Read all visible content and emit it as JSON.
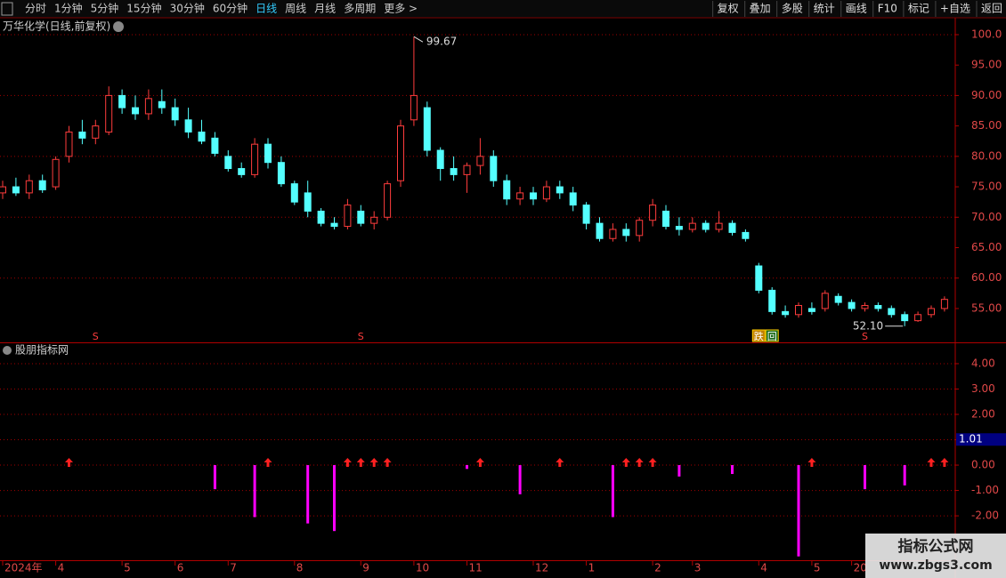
{
  "toolbar": {
    "left": [
      "分时",
      "1分钟",
      "5分钟",
      "15分钟",
      "30分钟",
      "60分钟",
      "日线",
      "周线",
      "月线",
      "多周期",
      "更多 >"
    ],
    "active": 6,
    "right": [
      "复权",
      "叠加",
      "多股",
      "统计",
      "画线",
      "F10",
      "标记",
      "+自选",
      "返回"
    ]
  },
  "watermark": {
    "title": "指标公式网",
    "url": "www.zbgs3.com"
  },
  "chart_data": [
    {
      "type": "candlestick",
      "title": "万华化学(日线,前复权)",
      "up_color": "#ff3c3c",
      "down_color": "#54ffff",
      "categories": [
        "2024年",
        null,
        null,
        null,
        "4",
        null,
        null,
        null,
        null,
        "5",
        null,
        null,
        null,
        "6",
        null,
        null,
        null,
        "7",
        null,
        null,
        null,
        null,
        "8",
        null,
        null,
        null,
        null,
        "9",
        null,
        null,
        null,
        "10",
        null,
        null,
        null,
        "11",
        null,
        null,
        null,
        null,
        "12",
        null,
        null,
        null,
        "1",
        null,
        null,
        null,
        null,
        "2",
        null,
        null,
        "3",
        null,
        null,
        null,
        null,
        "4",
        null,
        null,
        null,
        "5",
        null,
        null,
        "20",
        null,
        null,
        null,
        null,
        null,
        null,
        null
      ],
      "candles": [
        [
          74,
          76,
          73,
          75
        ],
        [
          75,
          76.5,
          73.5,
          74
        ],
        [
          74,
          77,
          73,
          76
        ],
        [
          76,
          77,
          74,
          74.5
        ],
        [
          75,
          80,
          74.5,
          79.5
        ],
        [
          80,
          85,
          79,
          84
        ],
        [
          84,
          86,
          82,
          83
        ],
        [
          83,
          86,
          82,
          85
        ],
        [
          84,
          91.5,
          83.5,
          90
        ],
        [
          90,
          91,
          87,
          88
        ],
        [
          88,
          90,
          86,
          87
        ],
        [
          87,
          91,
          86,
          89.5
        ],
        [
          89,
          91,
          87,
          88
        ],
        [
          88,
          89.5,
          85,
          86
        ],
        [
          86,
          88,
          83,
          84
        ],
        [
          84,
          86,
          82,
          82.5
        ],
        [
          83,
          84,
          80,
          80.5
        ],
        [
          80,
          81,
          77.5,
          78
        ],
        [
          78,
          79,
          76.5,
          77
        ],
        [
          77,
          83,
          76.5,
          82
        ],
        [
          82,
          83,
          78,
          79
        ],
        [
          79,
          80,
          75,
          75.5
        ],
        [
          75.5,
          76,
          72,
          72.5
        ],
        [
          74,
          76,
          70,
          71
        ],
        [
          71,
          71.5,
          68.5,
          69
        ],
        [
          69,
          70,
          68,
          68.5
        ],
        [
          68.5,
          73,
          68,
          72
        ],
        [
          71,
          72,
          68.5,
          69
        ],
        [
          69,
          71,
          68,
          70
        ],
        [
          70,
          76,
          69.5,
          75.5
        ],
        [
          76,
          86,
          75,
          85
        ],
        [
          86,
          99.67,
          85,
          90
        ],
        [
          88,
          89,
          80,
          81
        ],
        [
          81,
          81.5,
          76,
          78
        ],
        [
          78,
          80,
          76,
          77
        ],
        [
          77,
          79,
          74,
          78.5
        ],
        [
          78.5,
          83,
          77,
          80
        ],
        [
          80,
          81,
          75,
          76
        ],
        [
          76,
          77,
          72,
          73
        ],
        [
          73,
          75,
          72,
          74
        ],
        [
          74,
          75,
          72,
          73
        ],
        [
          73,
          76,
          72.5,
          75
        ],
        [
          75,
          76,
          73,
          74
        ],
        [
          74,
          75,
          71,
          72
        ],
        [
          72,
          72.5,
          68,
          69
        ],
        [
          69,
          70,
          66,
          66.5
        ],
        [
          66.5,
          69,
          66,
          68
        ],
        [
          68,
          69,
          66,
          67
        ],
        [
          67,
          70,
          66,
          69.5
        ],
        [
          69.5,
          73,
          68.5,
          72
        ],
        [
          71,
          72,
          68,
          68.5
        ],
        [
          68.5,
          70,
          67,
          68
        ],
        [
          68,
          70,
          67.5,
          69
        ],
        [
          69,
          69.5,
          67.5,
          68
        ],
        [
          68,
          71,
          67.5,
          69
        ],
        [
          69,
          69.5,
          67,
          67.5
        ],
        [
          67.5,
          68,
          66,
          66.5
        ],
        [
          62,
          62.5,
          57.5,
          58
        ],
        [
          58,
          58.5,
          54,
          54.5
        ],
        [
          54.5,
          55.5,
          53.5,
          54
        ],
        [
          54,
          56,
          53.5,
          55.5
        ],
        [
          55,
          56,
          54,
          54.5
        ],
        [
          55,
          58,
          54.5,
          57.5
        ],
        [
          57,
          57.5,
          55.5,
          56
        ],
        [
          56,
          56.5,
          54.5,
          55
        ],
        [
          55,
          56,
          54.5,
          55.5
        ],
        [
          55.5,
          56,
          54.5,
          55
        ],
        [
          55,
          55.5,
          53.5,
          54
        ],
        [
          54,
          54.5,
          52.1,
          53
        ],
        [
          53,
          54.5,
          52.8,
          54
        ],
        [
          54,
          55.5,
          53.5,
          55
        ],
        [
          55,
          57,
          54.5,
          56.5
        ]
      ],
      "annotations": [
        {
          "index": 31,
          "label": "99.67"
        },
        {
          "index": 68,
          "label": "52.10"
        }
      ],
      "signals": [
        {
          "index": 7,
          "label": "S"
        },
        {
          "index": 27,
          "label": "S"
        },
        {
          "index": 65,
          "label": "S"
        },
        {
          "index": 57,
          "label": "跌"
        },
        {
          "index": 58,
          "label": "回"
        }
      ],
      "ylim": [
        49.44,
        102.48
      ],
      "yticks": [
        {
          "value": 55,
          "label": "55.00"
        },
        {
          "value": 60,
          "label": "60.00"
        },
        {
          "value": 65,
          "label": "65.00"
        },
        {
          "value": 70,
          "label": "70.00"
        },
        {
          "value": 75,
          "label": "75.00"
        },
        {
          "value": 80,
          "label": "80.00"
        },
        {
          "value": 85,
          "label": "85.00"
        },
        {
          "value": 90,
          "label": "90.00"
        },
        {
          "value": 95,
          "label": "95.00"
        },
        {
          "value": 100,
          "label": "100.0"
        }
      ]
    },
    {
      "type": "indicator",
      "title": "股朋指标网",
      "bar_color": "#ff00ff",
      "arrow_color": "#ff2020",
      "bars": [
        null,
        null,
        null,
        null,
        null,
        null,
        null,
        null,
        null,
        null,
        null,
        null,
        null,
        null,
        null,
        null,
        -0.95,
        null,
        null,
        -2.05,
        null,
        null,
        null,
        -2.3,
        null,
        -2.6,
        null,
        null,
        null,
        null,
        null,
        null,
        null,
        null,
        null,
        -0.15,
        null,
        null,
        null,
        -1.15,
        null,
        null,
        null,
        null,
        null,
        null,
        -2.05,
        null,
        null,
        null,
        null,
        -0.45,
        null,
        null,
        null,
        -0.35,
        null,
        null,
        null,
        null,
        -3.6,
        null,
        null,
        null,
        null,
        -0.95,
        null,
        null,
        -0.8,
        null,
        null,
        null
      ],
      "arrows": [
        null,
        null,
        null,
        null,
        null,
        0,
        null,
        null,
        null,
        null,
        null,
        null,
        null,
        null,
        null,
        null,
        null,
        null,
        null,
        null,
        0,
        null,
        null,
        null,
        null,
        null,
        0,
        0,
        0,
        0,
        null,
        null,
        null,
        null,
        null,
        null,
        0,
        null,
        null,
        null,
        null,
        null,
        0,
        null,
        null,
        null,
        null,
        0,
        0,
        0,
        null,
        null,
        null,
        null,
        null,
        null,
        null,
        null,
        null,
        null,
        null,
        0,
        null,
        null,
        null,
        null,
        null,
        null,
        null,
        null,
        0,
        0
      ],
      "last_value": 1.01,
      "ylim": [
        -3.75,
        4.77
      ],
      "yticks": [
        {
          "value": -2,
          "label": "-2.00"
        },
        {
          "value": -1,
          "label": "-1.00"
        },
        {
          "value": 0,
          "label": "0.00"
        },
        {
          "value": 1,
          "label": "1.00"
        },
        {
          "value": 2,
          "label": "2.00"
        },
        {
          "value": 3,
          "label": "3.00"
        },
        {
          "value": 4,
          "label": "4.00"
        }
      ]
    }
  ]
}
